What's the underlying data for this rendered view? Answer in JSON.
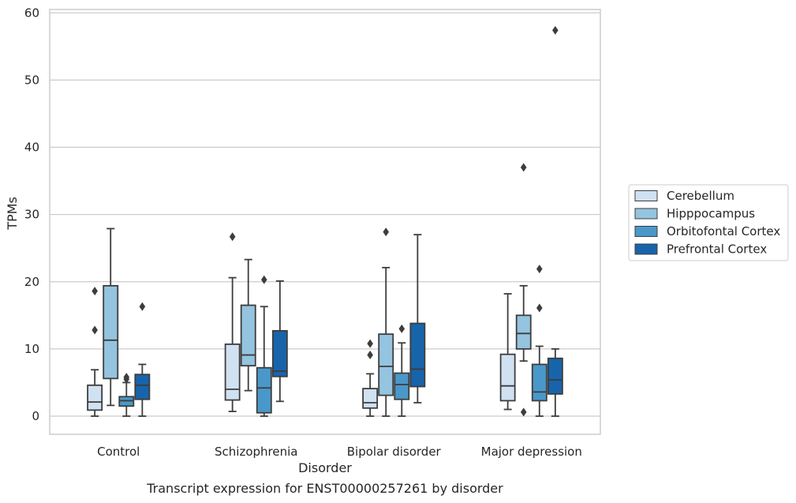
{
  "chart_data": {
    "type": "box",
    "title": "",
    "caption": "Transcript expression for ENST00000257261 by disorder",
    "xlabel": "Disorder",
    "ylabel": "TPMs",
    "ylim": [
      -2.7,
      60.5
    ],
    "yticks": [
      0,
      10,
      20,
      30,
      40,
      50,
      60
    ],
    "grid": "horizontal",
    "legend_position": "right",
    "categories": [
      "Control",
      "Schizophrenia",
      "Bipolar disorder",
      "Major depression"
    ],
    "series": [
      {
        "name": "Cerebellum",
        "color": "#d0e1f2",
        "boxes": [
          {
            "whislo": 0.0,
            "q1": 0.9,
            "med": 2.1,
            "q3": 4.6,
            "whishi": 6.9,
            "fliers": [
              12.8,
              18.6
            ]
          },
          {
            "whislo": 0.7,
            "q1": 2.4,
            "med": 4.0,
            "q3": 10.7,
            "whishi": 20.6,
            "fliers": [
              26.7
            ]
          },
          {
            "whislo": 0.0,
            "q1": 1.2,
            "med": 2.0,
            "q3": 4.1,
            "whishi": 6.3,
            "fliers": [
              9.1,
              10.8
            ]
          },
          {
            "whislo": 1.0,
            "q1": 2.3,
            "med": 4.5,
            "q3": 9.2,
            "whishi": 18.2,
            "fliers": []
          }
        ]
      },
      {
        "name": "Hipppocampus",
        "color": "#94c4df",
        "boxes": [
          {
            "whislo": 1.6,
            "q1": 5.6,
            "med": 11.3,
            "q3": 19.4,
            "whishi": 27.9,
            "fliers": []
          },
          {
            "whislo": 3.8,
            "q1": 7.5,
            "med": 9.1,
            "q3": 16.5,
            "whishi": 23.3,
            "fliers": []
          },
          {
            "whislo": 0.0,
            "q1": 3.1,
            "med": 7.4,
            "q3": 12.2,
            "whishi": 22.1,
            "fliers": [
              27.4
            ]
          },
          {
            "whislo": 8.2,
            "q1": 10.0,
            "med": 12.3,
            "q3": 15.0,
            "whishi": 19.4,
            "fliers": [
              0.6,
              37.0
            ]
          }
        ]
      },
      {
        "name": "Orbitofontal Cortex",
        "color": "#4a98c9",
        "boxes": [
          {
            "whislo": 0.0,
            "q1": 1.5,
            "med": 2.3,
            "q3": 2.9,
            "whishi": 5.0,
            "fliers": [
              5.5,
              5.8
            ]
          },
          {
            "whislo": 0.0,
            "q1": 0.5,
            "med": 4.2,
            "q3": 7.2,
            "whishi": 16.3,
            "fliers": [
              20.3
            ]
          },
          {
            "whislo": 0.0,
            "q1": 2.5,
            "med": 4.7,
            "q3": 6.4,
            "whishi": 10.9,
            "fliers": [
              13.0
            ]
          },
          {
            "whislo": 0.0,
            "q1": 2.3,
            "med": 3.6,
            "q3": 7.7,
            "whishi": 10.4,
            "fliers": [
              16.1,
              21.9
            ]
          }
        ]
      },
      {
        "name": "Prefrontal Cortex",
        "color": "#1764ab",
        "boxes": [
          {
            "whislo": 0.0,
            "q1": 2.5,
            "med": 4.6,
            "q3": 6.2,
            "whishi": 7.7,
            "fliers": [
              16.3
            ]
          },
          {
            "whislo": 2.2,
            "q1": 5.9,
            "med": 6.7,
            "q3": 12.7,
            "whishi": 20.1,
            "fliers": []
          },
          {
            "whislo": 2.0,
            "q1": 4.4,
            "med": 7.0,
            "q3": 13.8,
            "whishi": 27.0,
            "fliers": []
          },
          {
            "whislo": 0.0,
            "q1": 3.3,
            "med": 5.4,
            "q3": 8.6,
            "whishi": 10.0,
            "fliers": [
              57.4
            ]
          }
        ]
      }
    ]
  }
}
